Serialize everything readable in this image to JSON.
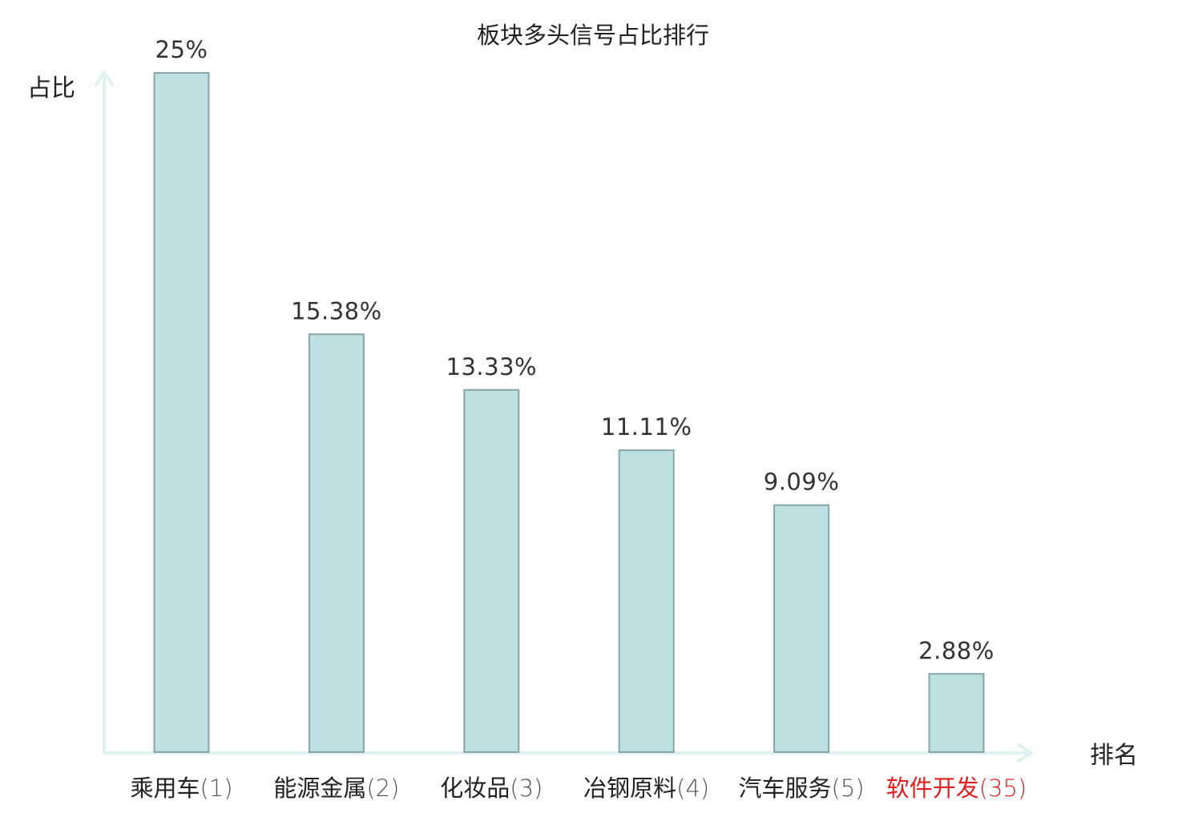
{
  "chart_data": {
    "type": "bar",
    "title": "板块多头信号占比排行",
    "xlabel": "排名",
    "ylabel": "占比",
    "categories": [
      "乘用车",
      "能源金属",
      "化妆品",
      "冶钢原料",
      "汽车服务",
      "软件开发"
    ],
    "ranks": [
      "(1)",
      "(2)",
      "(3)",
      "(4)",
      "(5)",
      "(35)"
    ],
    "values": [
      25,
      15.38,
      13.33,
      11.11,
      9.09,
      2.88
    ],
    "value_labels": [
      "25%",
      "15.38%",
      "13.33%",
      "11.11%",
      "9.09%",
      "2.88%"
    ],
    "highlight_index": 5,
    "ylim": [
      0,
      25
    ],
    "grid": false,
    "colors": {
      "bar_fill": "#bde0e3",
      "bar_stroke": "#86a5a8",
      "axis": "#e0f2ef",
      "text": "#222222",
      "rank_text": "#555555",
      "highlight": "#e02020"
    }
  }
}
